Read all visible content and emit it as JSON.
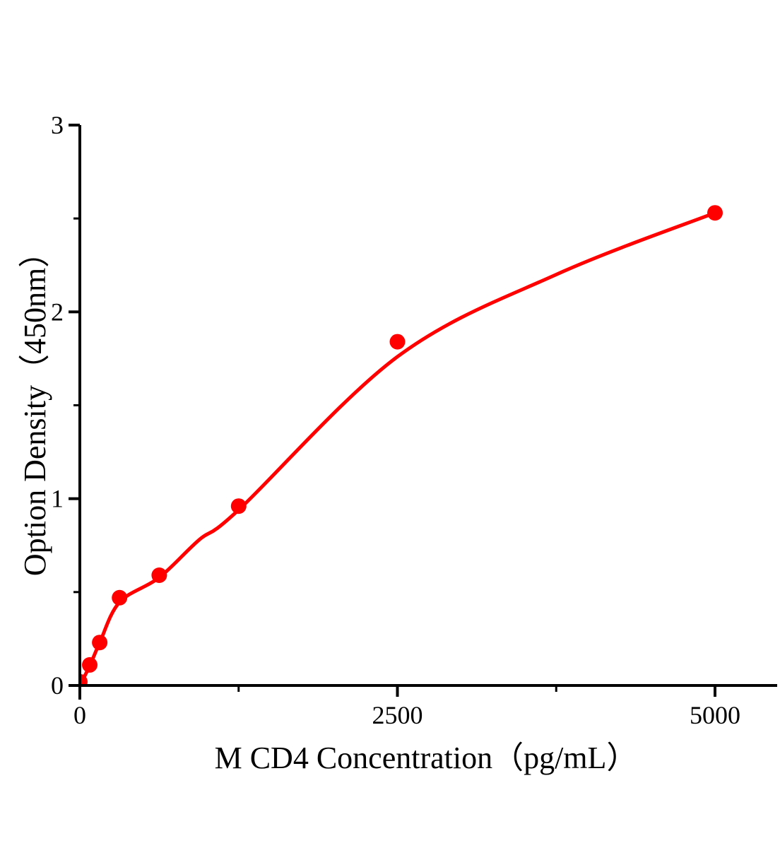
{
  "page": {
    "background": "#ffffff"
  },
  "chart_data": {
    "type": "scatter",
    "title": "",
    "xlabel": "M CD4 Concentration（pg/mL）",
    "ylabel": "Option Density（450nm）",
    "xlim": [
      0,
      5490
    ],
    "ylim": [
      0,
      3
    ],
    "grid": false,
    "legend": "none",
    "x_ticks": {
      "major": [
        {
          "value": 0,
          "label": "0"
        },
        {
          "value": 2500,
          "label": "2500"
        },
        {
          "value": 5000,
          "label": "5000"
        }
      ],
      "minor": [
        1250,
        3750
      ]
    },
    "y_ticks": {
      "major": [
        {
          "value": 0,
          "label": "0"
        },
        {
          "value": 1,
          "label": "1"
        },
        {
          "value": 2,
          "label": "2"
        },
        {
          "value": 3,
          "label": "3"
        }
      ],
      "minor": [
        0.5,
        1.5,
        2.5
      ]
    },
    "series": [
      {
        "marker": "filled-circle",
        "color": "#ff0000",
        "points": [
          {
            "x": 0,
            "y": 0.02
          },
          {
            "x": 78.125,
            "y": 0.11
          },
          {
            "x": 156.25,
            "y": 0.23
          },
          {
            "x": 312.5,
            "y": 0.47
          },
          {
            "x": 625,
            "y": 0.59
          },
          {
            "x": 1250,
            "y": 0.96
          },
          {
            "x": 2500,
            "y": 1.84
          },
          {
            "x": 5000,
            "y": 2.53
          }
        ],
        "fit_curve_samples": [
          {
            "x": 0,
            "y": 0
          },
          {
            "x": 78,
            "y": 0.105
          },
          {
            "x": 156,
            "y": 0.228
          },
          {
            "x": 313,
            "y": 0.446
          },
          {
            "x": 625,
            "y": 0.578
          },
          {
            "x": 940,
            "y": 0.78
          },
          {
            "x": 1250,
            "y": 0.94
          },
          {
            "x": 2500,
            "y": 1.76
          },
          {
            "x": 3750,
            "y": 2.2
          },
          {
            "x": 5000,
            "y": 2.53
          }
        ]
      }
    ],
    "colors": {
      "curve": "#ff0000",
      "marker": "#ff0000",
      "axis": "#000000",
      "text": "#000000",
      "background": "#ffffff"
    }
  }
}
